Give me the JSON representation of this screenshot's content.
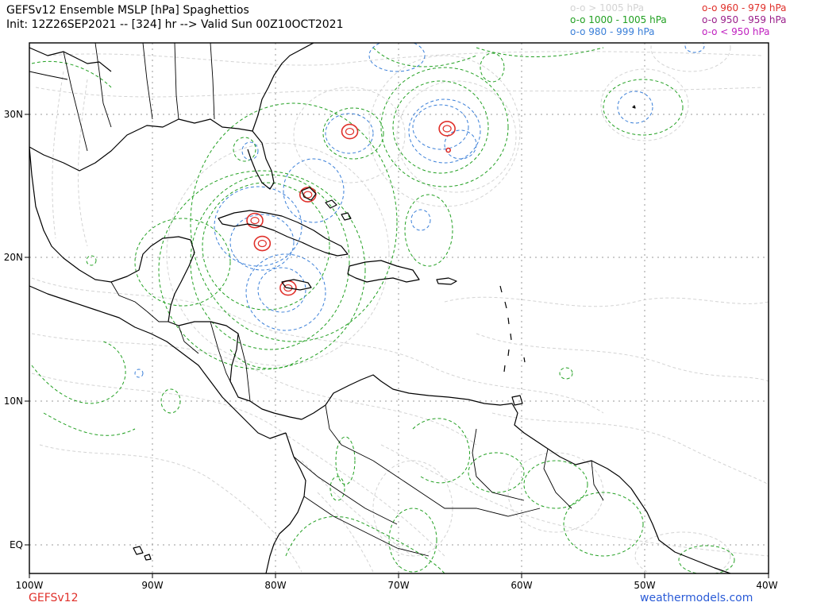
{
  "header": {
    "title_line1": "GEFSv12 Ensemble MSLP [hPa] Spaghettios",
    "title_line2": "Init: 12Z26SEP2021 -- [324] hr --> Valid Sun 00Z10OCT2021"
  },
  "legend": {
    "left": [
      {
        "text": "o-o > 1005 hPa",
        "color": "#d3d3d3"
      },
      {
        "text": "o-o 1000 - 1005 hPa",
        "color": "#22a022"
      },
      {
        "text": "o-o 980 - 999 hPa",
        "color": "#3a7fd8"
      }
    ],
    "right": [
      {
        "text": "o-o 960 - 979 hPa",
        "color": "#e0302a"
      },
      {
        "text": "o-o 950 - 959 hPa",
        "color": "#9a1f8a"
      },
      {
        "text": "o-o < 950 hPa",
        "color": "#c020c0"
      }
    ]
  },
  "axes": {
    "lat_labels": [
      "30N",
      "20N",
      "10N",
      "EQ"
    ],
    "lon_labels": [
      "100W",
      "90W",
      "80W",
      "70W",
      "60W",
      "50W",
      "40W"
    ]
  },
  "footer": {
    "brand_left": "GEFSv12",
    "brand_right": "weathermodels.com",
    "brand_left_color": "#e0302a",
    "brand_right_color": "#2a5bd7"
  },
  "low_centers": [
    {
      "lon": -74.0,
      "lat": 28.8,
      "category": "960-979"
    },
    {
      "lon": -66.1,
      "lat": 29.0,
      "category": "960-979"
    },
    {
      "lon": -77.4,
      "lat": 24.4,
      "category": "960-979"
    },
    {
      "lon": -81.7,
      "lat": 22.6,
      "category": "960-979"
    },
    {
      "lon": -81.1,
      "lat": 21.0,
      "category": "960-979"
    },
    {
      "lon": -79.0,
      "lat": 17.9,
      "category": "960-979"
    },
    {
      "lon": -66.0,
      "lat": 27.5,
      "category": "960-979"
    }
  ]
}
